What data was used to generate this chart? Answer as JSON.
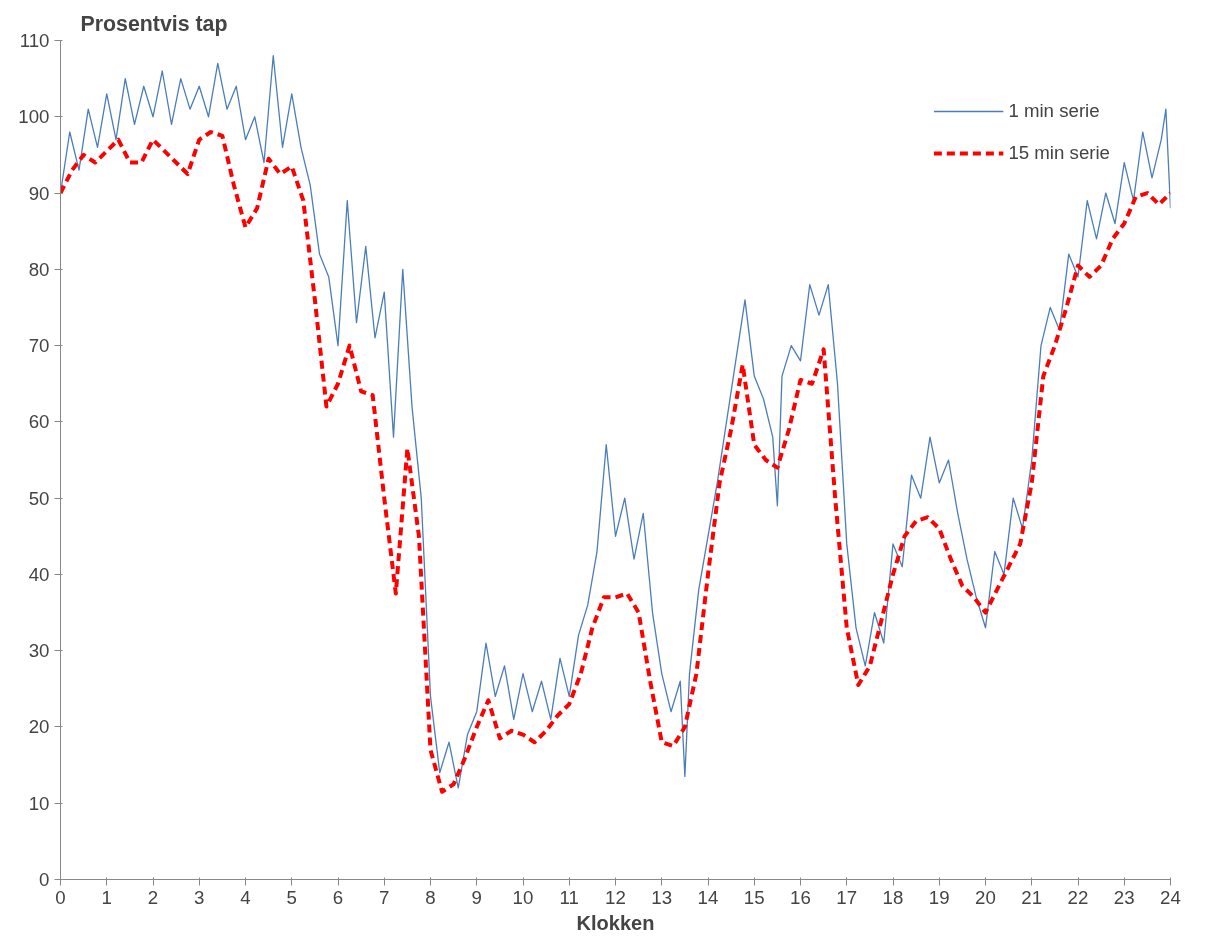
{
  "chart_data": {
    "type": "line",
    "title": "Prosentvis tap",
    "xlabel": "Klokken",
    "xlim": [
      0,
      24
    ],
    "xticks": [
      0,
      1,
      2,
      3,
      4,
      5,
      6,
      7,
      8,
      9,
      10,
      11,
      12,
      13,
      14,
      15,
      16,
      17,
      18,
      19,
      20,
      21,
      22,
      23,
      24
    ],
    "ylim": [
      0,
      110
    ],
    "yticks": [
      0,
      10,
      20,
      30,
      40,
      50,
      60,
      70,
      80,
      90,
      100,
      110
    ],
    "grid": false,
    "legend": "top right",
    "marker": "none",
    "series": [
      {
        "name": "1 min serie",
        "color": "#4a7ebb",
        "line_style": "solid",
        "x": [
          0,
          0.2,
          0.4,
          0.6,
          0.8,
          1.0,
          1.2,
          1.4,
          1.6,
          1.8,
          2.0,
          2.2,
          2.4,
          2.6,
          2.8,
          3.0,
          3.2,
          3.4,
          3.6,
          3.8,
          4.0,
          4.2,
          4.4,
          4.6,
          4.8,
          5.0,
          5.2,
          5.4,
          5.6,
          5.8,
          6.0,
          6.2,
          6.4,
          6.6,
          6.8,
          7.0,
          7.2,
          7.4,
          7.6,
          7.8,
          8.0,
          8.2,
          8.4,
          8.6,
          8.8,
          9.0,
          9.2,
          9.4,
          9.6,
          9.8,
          10.0,
          10.2,
          10.4,
          10.6,
          10.8,
          11.0,
          11.2,
          11.4,
          11.6,
          11.8,
          12.0,
          12.2,
          12.4,
          12.6,
          12.8,
          13.0,
          13.2,
          13.4,
          13.5,
          13.6,
          13.8,
          14.0,
          14.2,
          14.4,
          14.6,
          14.8,
          15.0,
          15.2,
          15.4,
          15.5,
          15.6,
          15.8,
          16.0,
          16.2,
          16.4,
          16.6,
          16.8,
          17.0,
          17.2,
          17.4,
          17.6,
          17.8,
          18.0,
          18.2,
          18.4,
          18.6,
          18.8,
          19.0,
          19.2,
          19.4,
          19.6,
          19.8,
          20.0,
          20.2,
          20.4,
          20.6,
          20.8,
          21.0,
          21.2,
          21.4,
          21.6,
          21.8,
          22.0,
          22.2,
          22.4,
          22.6,
          22.8,
          23.0,
          23.2,
          23.4,
          23.6,
          23.8,
          23.9,
          24
        ],
        "values": [
          90,
          98,
          93,
          101,
          96,
          103,
          97,
          105,
          99,
          104,
          100,
          106,
          99,
          105,
          101,
          104,
          100,
          107,
          101,
          104,
          97,
          100,
          94,
          108,
          96,
          103,
          96,
          91,
          82,
          79,
          70,
          89,
          73,
          83,
          71,
          77,
          58,
          80,
          62,
          50,
          24,
          14,
          18,
          12,
          19,
          22,
          31,
          24,
          28,
          21,
          27,
          22,
          26,
          21,
          29,
          24,
          32,
          36,
          43,
          57,
          45,
          50,
          42,
          48,
          35,
          27,
          22,
          26,
          13.5,
          27,
          38,
          45,
          52,
          60,
          68,
          76,
          66,
          63,
          58,
          49,
          66,
          70,
          68,
          78,
          74,
          78,
          65,
          44,
          33,
          28,
          35,
          31,
          44,
          41,
          53,
          50,
          58,
          52,
          55,
          48,
          42,
          37,
          33,
          43,
          40,
          50,
          46,
          55,
          70,
          75,
          72,
          82,
          79,
          89,
          84,
          90,
          86,
          94,
          89,
          98,
          92,
          97,
          101,
          88
        ]
      },
      {
        "name": "15 min serie",
        "color": "#ff0000",
        "line_style": "dashed",
        "x": [
          0,
          0.25,
          0.5,
          0.75,
          1,
          1.25,
          1.5,
          1.75,
          2,
          2.25,
          2.5,
          2.75,
          3,
          3.25,
          3.5,
          3.75,
          4,
          4.25,
          4.5,
          4.75,
          5,
          5.25,
          5.5,
          5.75,
          6,
          6.25,
          6.5,
          6.75,
          7,
          7.25,
          7.5,
          7.75,
          8,
          8.25,
          8.5,
          8.75,
          9,
          9.25,
          9.5,
          9.75,
          10,
          10.25,
          10.5,
          10.75,
          11,
          11.25,
          11.5,
          11.75,
          12,
          12.25,
          12.5,
          12.75,
          13,
          13.25,
          13.5,
          13.75,
          14,
          14.25,
          14.5,
          14.75,
          15,
          15.25,
          15.5,
          15.75,
          16,
          16.25,
          16.5,
          16.75,
          17,
          17.25,
          17.5,
          17.75,
          18,
          18.25,
          18.5,
          18.75,
          19,
          19.25,
          19.5,
          19.75,
          20,
          20.25,
          20.5,
          20.75,
          21,
          21.25,
          21.5,
          21.75,
          22,
          22.25,
          22.5,
          22.75,
          23,
          23.25,
          23.5,
          23.75,
          24
        ],
        "values": [
          90,
          93,
          95,
          94,
          95.5,
          97,
          94,
          94,
          97,
          95.5,
          94,
          92.5,
          97,
          98,
          97.5,
          91,
          85.5,
          88,
          94.5,
          92.5,
          93.5,
          89,
          76,
          62,
          65,
          70,
          64,
          63.5,
          50,
          37.5,
          56.5,
          45,
          17,
          11.5,
          12.5,
          16,
          20,
          23.5,
          18.5,
          19.5,
          19,
          18,
          19.5,
          21.5,
          23,
          27,
          33,
          37,
          37,
          37.5,
          35,
          26,
          18,
          17.5,
          20,
          27,
          40,
          52,
          59,
          67.5,
          57,
          55,
          54,
          59,
          65.5,
          65,
          69.5,
          50,
          33,
          25.5,
          28,
          34,
          40,
          45,
          47,
          47.5,
          46,
          42,
          38.5,
          37,
          35,
          38,
          41,
          44,
          52,
          66,
          70,
          75,
          80.5,
          79,
          80.5,
          84,
          86,
          89.5,
          90,
          88.5,
          90
        ]
      }
    ]
  }
}
